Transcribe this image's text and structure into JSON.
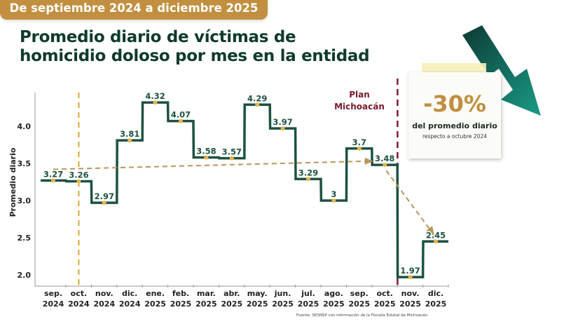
{
  "header": {
    "period_badge": "De septiembre 2024 a diciembre 2025",
    "title_line1": "Promedio diario de víctimas de",
    "title_line2": "homicidio doloso por mes en la entidad"
  },
  "callout": {
    "percent": "-30%",
    "line1": "del promedio diario",
    "line2": "respecto a octubre 2024",
    "icon": "down-trend-arrow-icon"
  },
  "source": "Fuente: SESNSP con información de la Fiscalía Estatal de Michoacán",
  "colors": {
    "line": "#1d5141",
    "point": "#e6b64a",
    "trend": "#b8965a",
    "plan": "#7a1a2e",
    "oct_marker": "#d9a82e"
  },
  "chart_data": {
    "type": "line",
    "style": "step",
    "title": "Promedio diario de víctimas de homicidio doloso por mes en la entidad",
    "xlabel": "",
    "ylabel": "Promedio diario",
    "ylim": [
      1.9,
      4.4
    ],
    "yticks": [
      "2.0",
      "2.5",
      "3.0",
      "3.5",
      "4.0"
    ],
    "ytick_values": [
      2.0,
      2.5,
      3.0,
      3.5,
      4.0
    ],
    "categories": [
      [
        "sep.",
        "2024"
      ],
      [
        "oct.",
        "2024"
      ],
      [
        "nov.",
        "2024"
      ],
      [
        "dic.",
        "2024"
      ],
      [
        "ene.",
        "2025"
      ],
      [
        "feb.",
        "2025"
      ],
      [
        "mar.",
        "2025"
      ],
      [
        "abr.",
        "2025"
      ],
      [
        "may.",
        "2025"
      ],
      [
        "jun.",
        "2025"
      ],
      [
        "jul.",
        "2025"
      ],
      [
        "ago.",
        "2025"
      ],
      [
        "sep.",
        "2025"
      ],
      [
        "oct.",
        "2025"
      ],
      [
        "nov.",
        "2025"
      ],
      [
        "dic.",
        "2025"
      ]
    ],
    "values": [
      3.27,
      3.26,
      2.97,
      3.81,
      4.32,
      4.07,
      3.58,
      3.57,
      4.29,
      3.97,
      3.29,
      3.0,
      3.7,
      3.48,
      1.97,
      2.45
    ],
    "labels": [
      "3.27",
      "3.26",
      "2.97",
      "3.81",
      "4.32",
      "4.07",
      "3.58",
      "3.57",
      "4.29",
      "3.97",
      "3.29",
      "3",
      "3.7",
      "3.48",
      "1.97",
      "2.45"
    ],
    "annotation": "Plan Michoacán",
    "annotation_line1": "Plan",
    "annotation_line2": "Michoacán",
    "trend": {
      "from_value": 3.42,
      "to_value": 3.53
    },
    "drop_trend": {
      "from_index": 13,
      "to_index": 15
    }
  }
}
